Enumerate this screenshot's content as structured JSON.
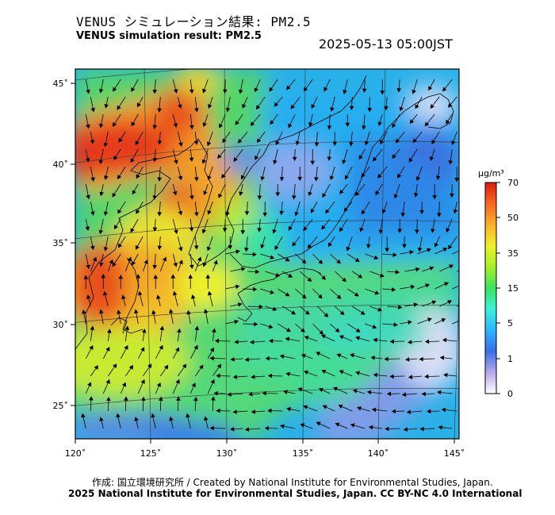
{
  "title_jp": "VENUS シミュレーション結果: PM2.5",
  "title_en": "VENUS simulation result: PM2.5",
  "timestamp": "2025-05-13 05:00JST",
  "footer": {
    "credit": "作成: 国立環境研究所 / Created by National Institute for Environmental Studies, Japan.",
    "license": "2025 National Institute for Environmental Studies, Japan. CC BY-NC 4.0 International"
  },
  "map": {
    "lon_ticks": [
      "120˚",
      "125˚",
      "130˚",
      "135˚",
      "140˚",
      "145˚"
    ],
    "lat_ticks": [
      "45˚",
      "40˚",
      "35˚",
      "30˚",
      "25˚"
    ],
    "extent": {
      "lon": [
        120,
        145.5
      ],
      "lat": [
        23,
        46
      ]
    }
  },
  "colorbar": {
    "unit": "μg/m³",
    "labels": [
      "0",
      "1",
      "5",
      "15",
      "35",
      "50",
      "70"
    ],
    "colors": [
      "#ffffff",
      "#b7a8ea",
      "#3a6ee6",
      "#2fb3ff",
      "#3df0d8",
      "#3be35e",
      "#a6ef2c",
      "#eef02c",
      "#f8b02c",
      "#f86820",
      "#d81e10"
    ]
  }
}
